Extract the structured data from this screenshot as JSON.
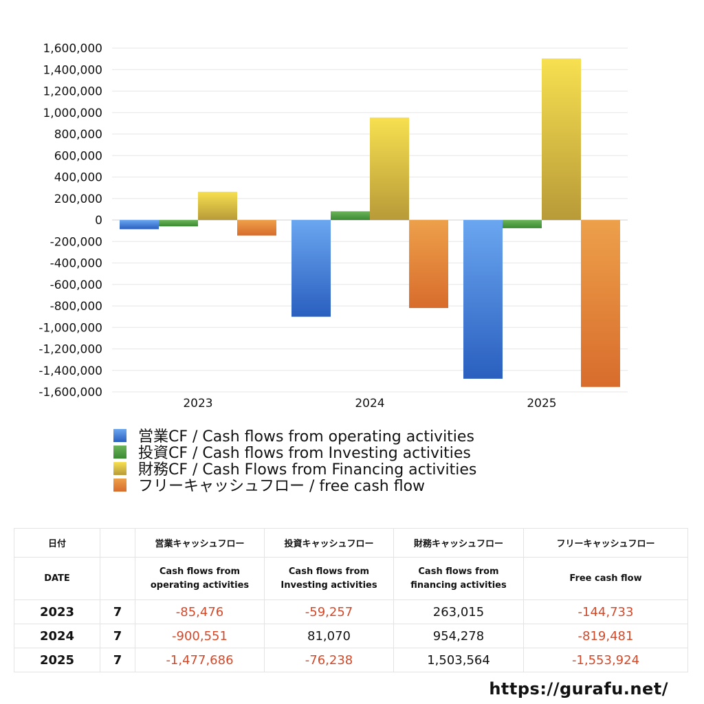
{
  "chart_data": {
    "type": "bar",
    "categories": [
      "2023",
      "2024",
      "2025"
    ],
    "ylim": [
      -1600000,
      1600000
    ],
    "yticks": [
      1600000,
      1400000,
      1200000,
      1000000,
      800000,
      600000,
      400000,
      200000,
      0,
      -200000,
      -400000,
      -600000,
      -800000,
      -1000000,
      -1200000,
      -1400000,
      -1600000
    ],
    "ytick_labels": [
      "1,600,000",
      "1,400,000",
      "1,200,000",
      "1,000,000",
      "800,000",
      "600,000",
      "400,000",
      "200,000",
      "0",
      "-200,000",
      "-400,000",
      "-600,000",
      "-800,000",
      "-1,000,000",
      "-1,200,000",
      "-1,400,000",
      "-1,600,000"
    ],
    "grid": true,
    "legend_position": "bottom-left",
    "series": [
      {
        "name": "営業CF / Cash flows from operating activities",
        "color_top": "#6aa6f0",
        "color_bottom": "#2a5fbf",
        "values": [
          -85476,
          -900551,
          -1477686
        ]
      },
      {
        "name": "投資CF / Cash flows from Investing activities",
        "color_top": "#6cb45a",
        "color_bottom": "#3a8a32",
        "values": [
          -59257,
          81070,
          -76238
        ]
      },
      {
        "name": "財務CF / Cash Flows from Financing activities",
        "color_top": "#f7e050",
        "color_bottom": "#b89a38",
        "values": [
          263015,
          954278,
          1503564
        ]
      },
      {
        "name": "フリーキャッシュフロー / free cash flow",
        "color_top": "#eda04a",
        "color_bottom": "#d86c2c",
        "values": [
          -144733,
          -819481,
          -1553924
        ]
      }
    ]
  },
  "table": {
    "headers_ja": [
      "日付",
      "",
      "営業キャッシュフロー",
      "投資キャッシュフロー",
      "財務キャッシュフロー",
      "フリーキャッシュフロー"
    ],
    "headers_en": [
      [
        "DATE"
      ],
      [],
      [
        "Cash flows from",
        "operating activities"
      ],
      [
        "Cash flows from",
        "Investing activities"
      ],
      [
        "Cash flows from",
        "financing activities"
      ],
      [
        "Free cash flow"
      ]
    ],
    "rows": [
      {
        "year": "2023",
        "month": "7",
        "cells": [
          {
            "text": "-85,476",
            "neg": true
          },
          {
            "text": "-59,257",
            "neg": true
          },
          {
            "text": "263,015",
            "neg": false
          },
          {
            "text": "-144,733",
            "neg": true
          }
        ]
      },
      {
        "year": "2024",
        "month": "7",
        "cells": [
          {
            "text": "-900,551",
            "neg": true
          },
          {
            "text": "81,070",
            "neg": false
          },
          {
            "text": "954,278",
            "neg": false
          },
          {
            "text": "-819,481",
            "neg": true
          }
        ]
      },
      {
        "year": "2025",
        "month": "7",
        "cells": [
          {
            "text": "-1,477,686",
            "neg": true
          },
          {
            "text": "-76,238",
            "neg": true
          },
          {
            "text": "1,503,564",
            "neg": false
          },
          {
            "text": "-1,553,924",
            "neg": true
          }
        ]
      }
    ]
  },
  "credit": "https://gurafu.net/"
}
